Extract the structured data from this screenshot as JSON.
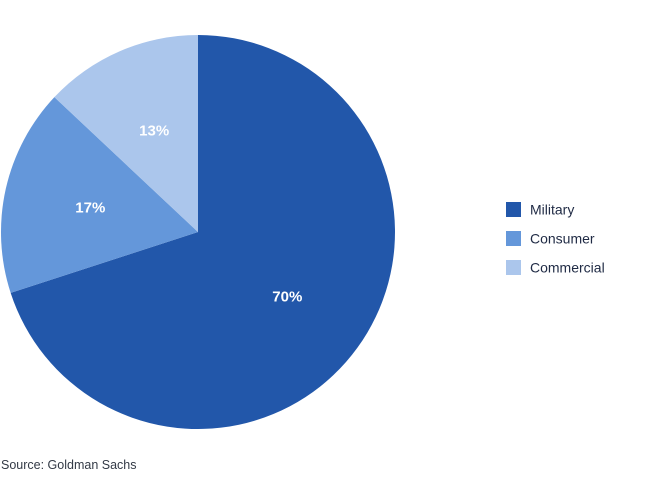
{
  "chart_data": {
    "type": "pie",
    "categories": [
      "Military",
      "Consumer",
      "Commercial"
    ],
    "values": [
      70,
      17,
      13
    ],
    "labels": [
      "70%",
      "17%",
      "13%"
    ],
    "colors": [
      "#2257aa",
      "#6497da",
      "#abc6ec"
    ],
    "start_angle_deg": 0,
    "direction": "clockwise",
    "legend_placement": "right"
  },
  "source": "Source: Goldman Sachs"
}
